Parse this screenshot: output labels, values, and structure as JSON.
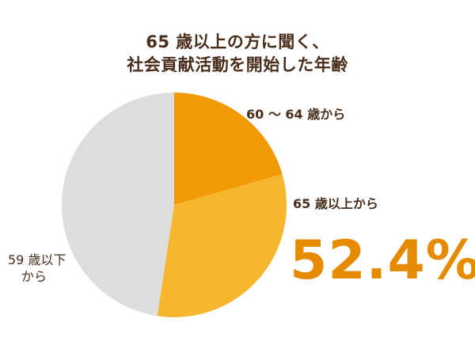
{
  "chart_data": {
    "type": "pie",
    "title_lines": [
      "65 歳以上の方に聞く、",
      "社会貢献活動を開始した年齢"
    ],
    "slices": [
      {
        "label": "60 ～ 64 歳から",
        "value": 20.6,
        "color": "#f29a06"
      },
      {
        "label": "65 歳以上から",
        "value": 31.8,
        "color": "#f6b72e"
      },
      {
        "label_lines": [
          "59 歳以下",
          "から"
        ],
        "value": 47.6,
        "color": "#dddddd"
      }
    ],
    "highlight": {
      "label": "65 歳以上から",
      "value_text": "52.4%",
      "color": "#e68a00"
    },
    "start_angle_deg": 0,
    "direction": "clockwise"
  }
}
